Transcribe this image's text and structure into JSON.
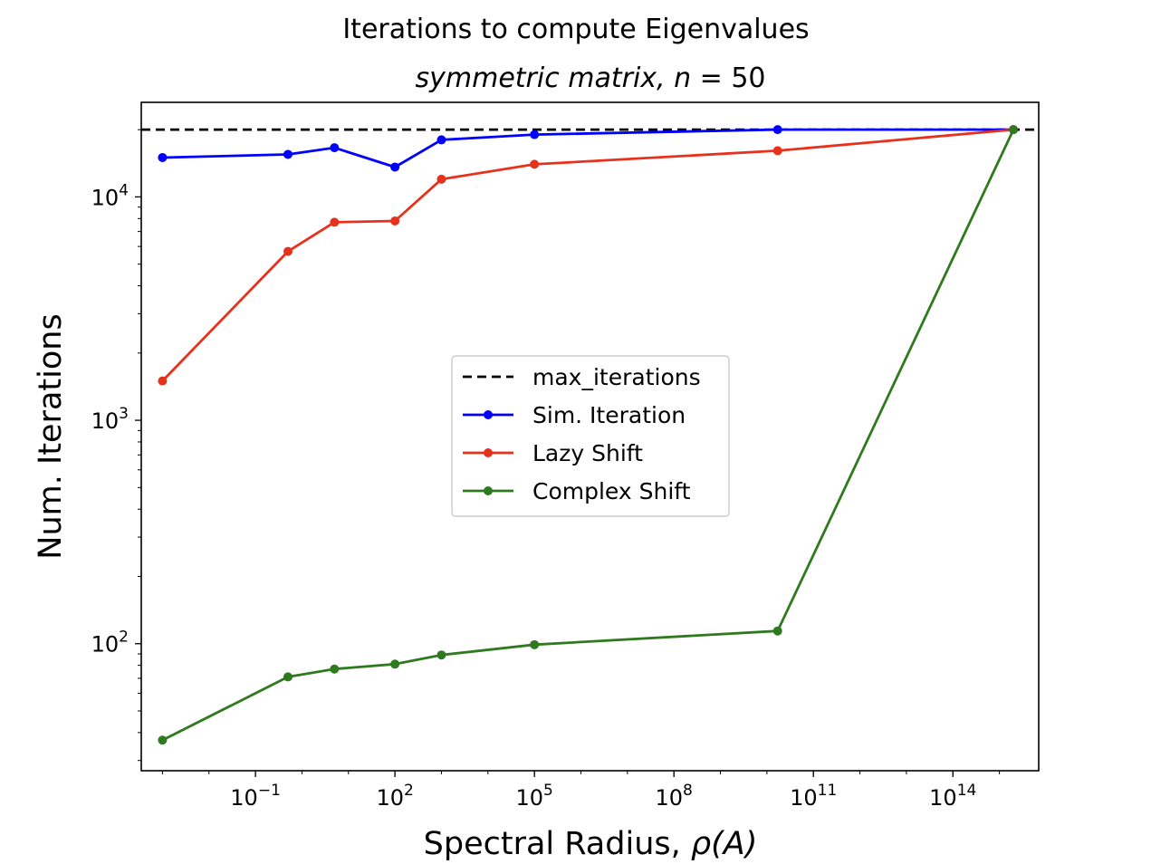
{
  "chart_data": {
    "type": "line",
    "suptitle": "Iterations to compute Eigenvalues",
    "title_prefix": "symmetric matrix, ",
    "title_var": "n",
    "title_eq": " = 50",
    "xlabel_prefix": "Spectral Radius, ",
    "xlabel_math": "ρ(A)",
    "ylabel": "Num. Iterations",
    "xscale": "log",
    "yscale": "log",
    "xlim": [
      0.00035,
      7000000000000000.0
    ],
    "ylim": [
      27,
      26500
    ],
    "x_ticks": [
      {
        "value": 0.1,
        "base": "10",
        "exp": "−1"
      },
      {
        "value": 100,
        "base": "10",
        "exp": "2"
      },
      {
        "value": 100000,
        "base": "10",
        "exp": "5"
      },
      {
        "value": 100000000.0,
        "base": "10",
        "exp": "8"
      },
      {
        "value": 100000000000.0,
        "base": "10",
        "exp": "11"
      },
      {
        "value": 100000000000000.0,
        "base": "10",
        "exp": "14"
      }
    ],
    "y_ticks": [
      {
        "value": 100,
        "base": "10",
        "exp": "2"
      },
      {
        "value": 1000,
        "base": "10",
        "exp": "3"
      },
      {
        "value": 10000,
        "base": "10",
        "exp": "4"
      }
    ],
    "max_iterations": 20000,
    "x": [
      0.001,
      0.5,
      5,
      100,
      1000,
      100000,
      17000000000.0,
      2000000000000000.0
    ],
    "series": [
      {
        "name": "max_iterations",
        "kind": "hline",
        "value": 20000,
        "color": "#000000",
        "dashed": true
      },
      {
        "name": "Sim. Iteration",
        "color": "#0000ff",
        "values": [
          15000,
          15500,
          16600,
          13600,
          18000,
          19000,
          20000,
          20000
        ]
      },
      {
        "name": "Lazy Shift",
        "color": "#e8311c",
        "values": [
          1500,
          5700,
          7700,
          7800,
          12000,
          14000,
          16100,
          20000
        ]
      },
      {
        "name": "Complex Shift",
        "color": "#2f7a1f",
        "values": [
          37,
          71,
          77,
          81,
          89,
          99,
          114,
          20000
        ]
      }
    ],
    "legend_position": "center",
    "grid": false
  }
}
